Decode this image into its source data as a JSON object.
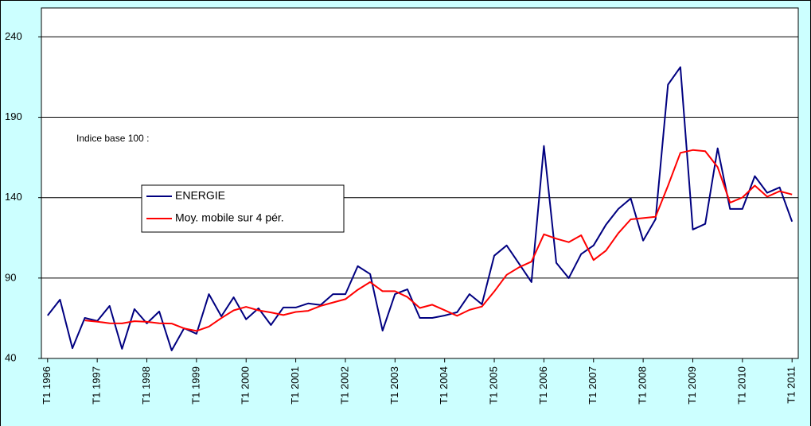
{
  "chart_data": {
    "type": "line",
    "annotation": "Indice base 100 :",
    "categories": [
      "T1 1996",
      null,
      null,
      null,
      "T1 1997",
      null,
      null,
      null,
      "T1 1998",
      null,
      null,
      null,
      "T1 1999",
      null,
      null,
      null,
      "T1 2000",
      null,
      null,
      null,
      "T1 2001",
      null,
      null,
      null,
      "T1 2002",
      null,
      null,
      null,
      "T1 2003",
      null,
      null,
      null,
      "T1 2004",
      null,
      null,
      null,
      "T1 2005",
      null,
      null,
      null,
      "T1 2006",
      null,
      null,
      null,
      "T1 2007",
      null,
      null,
      null,
      "T1 2008",
      null,
      null,
      null,
      "T1 2009",
      null,
      null,
      null,
      "T1 2010",
      null,
      null,
      null,
      "T1 2011"
    ],
    "series": [
      {
        "name": "ENERGIE",
        "color": "#000080",
        "values": [
          66.7,
          76.6,
          46.4,
          65.2,
          63.3,
          72.7,
          46,
          70.7,
          61.8,
          69.2,
          45,
          58.8,
          55.3,
          80,
          66.2,
          78,
          64.3,
          71.2,
          60.8,
          71.7,
          71.7,
          74.2,
          73.2,
          80,
          80,
          97.4,
          92.5,
          57.3,
          80,
          83,
          65.2,
          65.2,
          66.7,
          68.7,
          80,
          73.7,
          103.9,
          110.3,
          98.9,
          87.5,
          172.2,
          99.4,
          90,
          104.9,
          110.3,
          123.2,
          133,
          139.5,
          113.3,
          126.6,
          210.3,
          221.2,
          120.2,
          123.7,
          170.7,
          133,
          133,
          153.4,
          143,
          146.4,
          125.1
        ]
      },
      {
        "name": "Moy. mobile sur 4 pér.",
        "color": "#ff0000",
        "values": [
          null,
          null,
          null,
          63.7,
          62.9,
          61.9,
          61.8,
          63.2,
          62.8,
          61.9,
          61.7,
          58.7,
          57.1,
          59.8,
          65.1,
          69.9,
          72.1,
          69.9,
          68.6,
          67,
          68.9,
          69.6,
          72.7,
          74.8,
          76.9,
          82.7,
          87.5,
          81.8,
          81.8,
          78.2,
          71.4,
          73.4,
          70,
          66.5,
          70.2,
          72.3,
          81.6,
          92,
          96.7,
          100.2,
          117.2,
          114.5,
          112.3,
          116.6,
          101.2,
          107.1,
          117.9,
          126.5,
          127.3,
          128.1,
          147.4,
          167.9,
          169.6,
          168.9,
          159,
          136.9,
          140.1,
          147.5,
          140.6,
          144,
          142
        ]
      }
    ],
    "ylim": [
      40,
      258
    ],
    "yticks": [
      40,
      90,
      140,
      190,
      240
    ],
    "grid": true
  }
}
